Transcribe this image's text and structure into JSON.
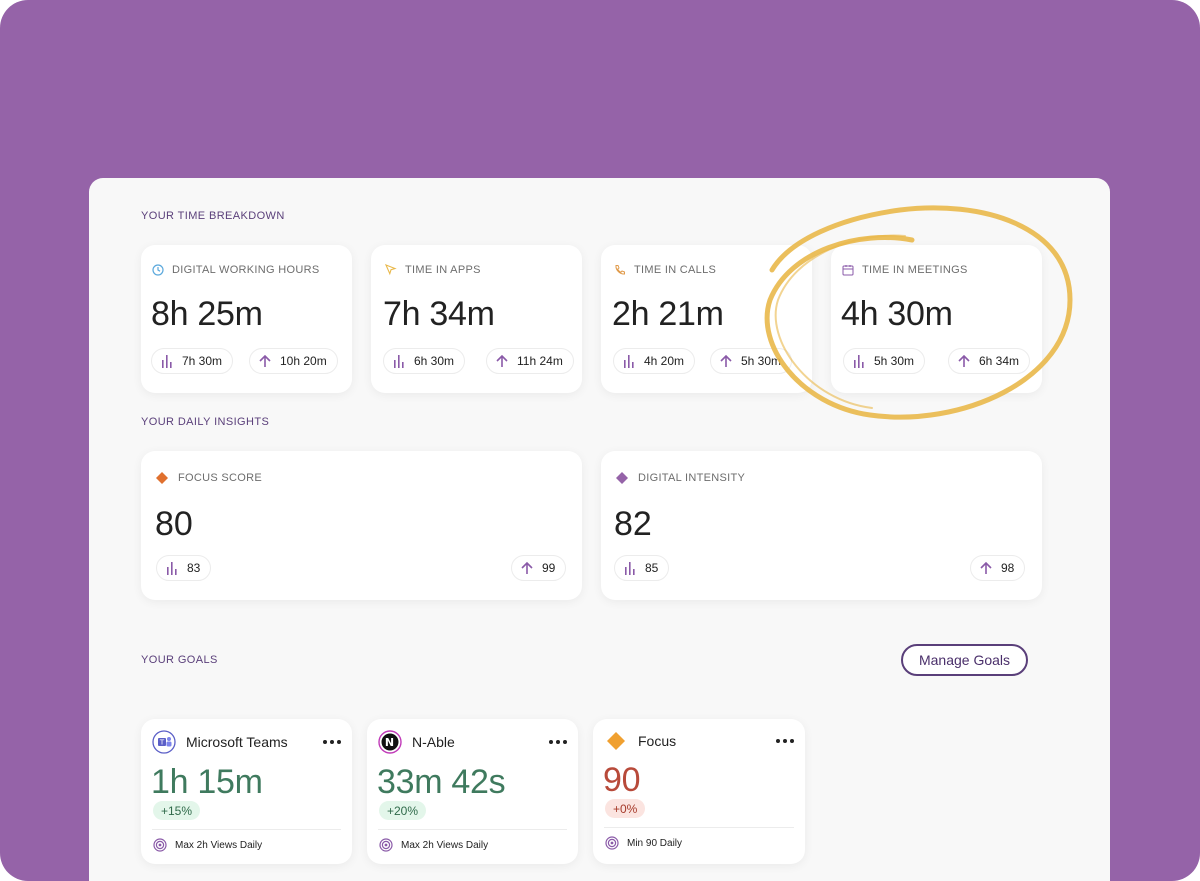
{
  "sections": {
    "time_breakdown": "YOUR TIME BREAKDOWN",
    "daily_insights": "YOUR DAILY INSIGHTS",
    "goals": "YOUR GOALS"
  },
  "metrics": [
    {
      "label": "DIGITAL WORKING HOURS",
      "icon": "clock-icon",
      "value": "8h 25m",
      "avg": "7h 30m",
      "high": "10h 20m"
    },
    {
      "label": "TIME IN APPS",
      "icon": "cursor-icon",
      "value": "7h 34m",
      "avg": "6h 30m",
      "high": "11h 24m"
    },
    {
      "label": "TIME IN CALLS",
      "icon": "phone-icon",
      "value": "2h 21m",
      "avg": "4h 20m",
      "high": "5h 30m"
    },
    {
      "label": "TIME IN MEETINGS",
      "icon": "calendar-icon",
      "value": "4h 30m",
      "avg": "5h 30m",
      "high": "6h 34m"
    }
  ],
  "insights": [
    {
      "label": "FOCUS SCORE",
      "icon": "orange-diamond-icon",
      "value": "80",
      "avg": "83",
      "high": "99"
    },
    {
      "label": "DIGITAL INTENSITY",
      "icon": "purple-diamond-icon",
      "value": "82",
      "avg": "85",
      "high": "98"
    }
  ],
  "manage_goals": "Manage Goals",
  "goals": [
    {
      "name": "Microsoft Teams",
      "icon": "teams-logo-icon",
      "value": "1h 15m",
      "change": "+15%",
      "target": "Max 2h Views Daily",
      "value_color": "#3f7a5e"
    },
    {
      "name": "N-Able",
      "icon": "n-able-logo-icon",
      "value": "33m 42s",
      "change": "+20%",
      "target": "Max 2h Views Daily",
      "value_color": "#3f7a5e"
    },
    {
      "name": "Focus",
      "icon": "orange-diamond-icon",
      "value": "90",
      "change": "+0%",
      "target": "Min 90 Daily",
      "value_color": "#b84a3a"
    }
  ],
  "colors": {
    "background": "#9563a8",
    "accent": "#5a3f7a",
    "positive_bg": "#e3f6ea",
    "negative_bg": "#fbe4e0",
    "highlight": "#e9b84a"
  }
}
